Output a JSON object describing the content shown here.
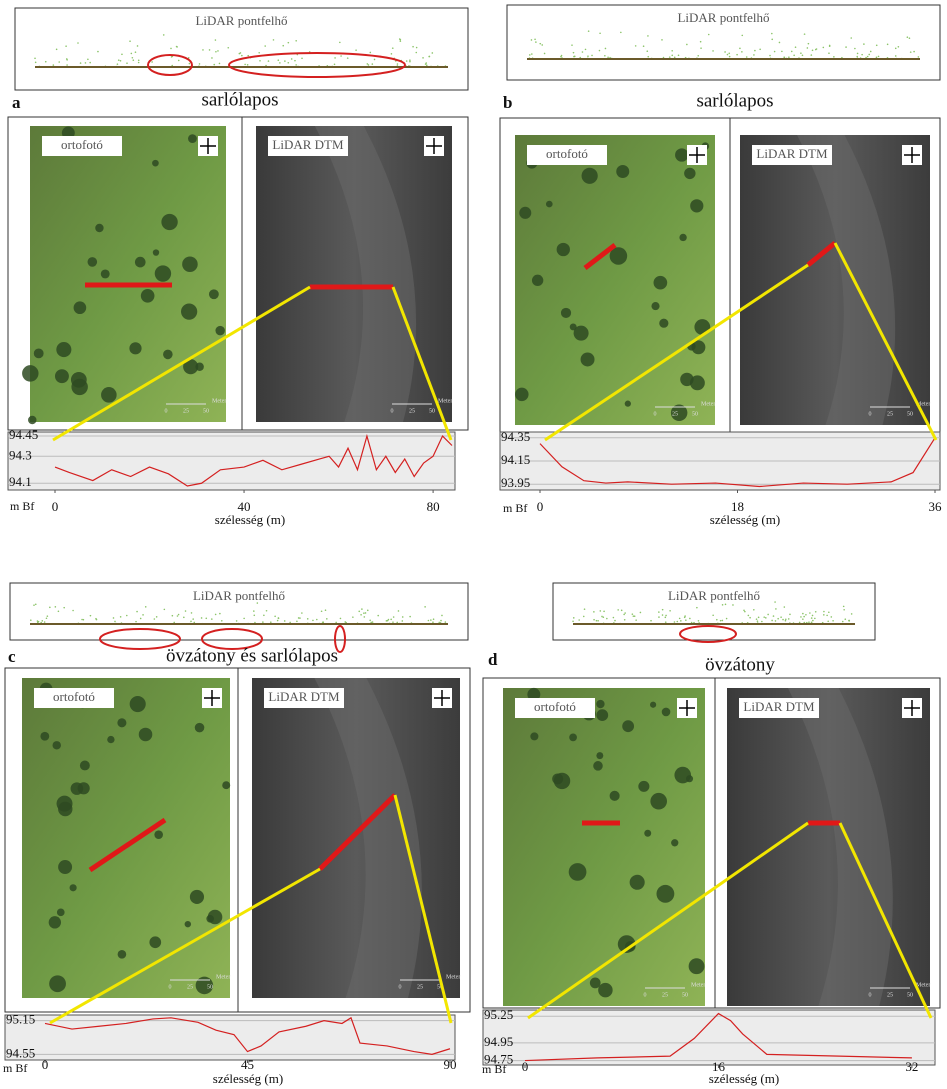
{
  "scale_bar": {
    "ticks": [
      0,
      25,
      50
    ],
    "unit": "Meter"
  },
  "panels": [
    {
      "letter": "a",
      "title": "sarlólapos",
      "pointcloud": "LiDAR pontfelhő",
      "ortho": "ortofotó",
      "dtm": "LiDAR DTM",
      "profile": {
        "unit": "m Bf",
        "xlabel": "szélesség (m)",
        "xlim": [
          0,
          84
        ],
        "ylim": [
          94.05,
          94.48
        ],
        "xticks": [
          0,
          40,
          80
        ],
        "yticks": [
          94.1,
          94.3,
          94.45
        ],
        "x": [
          0,
          3,
          8,
          12,
          16,
          20,
          24,
          28,
          31,
          35,
          40,
          44,
          48,
          52,
          56,
          58,
          60,
          62,
          64,
          66,
          68,
          70,
          72,
          74,
          76,
          78,
          80,
          82,
          84
        ],
        "values": [
          94.22,
          94.18,
          94.12,
          94.2,
          94.15,
          94.22,
          94.17,
          94.08,
          94.1,
          94.2,
          94.22,
          94.27,
          94.2,
          94.24,
          94.28,
          94.3,
          94.22,
          94.36,
          94.2,
          94.45,
          94.2,
          94.3,
          94.18,
          94.28,
          94.15,
          94.25,
          94.3,
          94.45,
          94.38
        ]
      }
    },
    {
      "letter": "b",
      "title": "sarlólapos",
      "pointcloud": "LiDAR pontfelhő",
      "ortho": "ortofotó",
      "dtm": "LiDAR DTM",
      "profile": {
        "unit": "m Bf",
        "xlabel": "szélesség (m)",
        "xlim": [
          0,
          36
        ],
        "ylim": [
          93.9,
          94.4
        ],
        "xticks": [
          0,
          18,
          36
        ],
        "yticks": [
          93.95,
          94.15,
          94.35
        ],
        "x": [
          0,
          2,
          4,
          6,
          8,
          12,
          16,
          20,
          24,
          28,
          32,
          34,
          36
        ],
        "values": [
          94.3,
          94.1,
          93.98,
          93.96,
          93.97,
          93.95,
          93.96,
          93.93,
          93.96,
          93.95,
          93.97,
          94.05,
          94.35
        ]
      }
    },
    {
      "letter": "c",
      "title": "övzátony és sarlólapos",
      "pointcloud": "LiDAR pontfelhő",
      "ortho": "ortofotó",
      "dtm": "LiDAR DTM",
      "profile": {
        "unit": "m Bf",
        "xlabel": "szélesség (m)",
        "xlim": [
          0,
          90
        ],
        "ylim": [
          94.45,
          95.25
        ],
        "xticks": [
          0,
          45,
          90
        ],
        "yticks": [
          94.55,
          95.15
        ],
        "x": [
          0,
          6,
          12,
          18,
          24,
          28,
          34,
          38,
          42,
          45,
          48,
          52,
          58,
          62,
          66,
          68,
          70,
          76,
          82,
          86,
          90
        ],
        "values": [
          95.1,
          95.0,
          95.05,
          95.1,
          95.18,
          95.2,
          95.12,
          94.98,
          94.9,
          94.6,
          94.7,
          94.95,
          95.05,
          95.15,
          95.1,
          95.2,
          94.75,
          94.7,
          94.6,
          94.55,
          94.65
        ]
      }
    },
    {
      "letter": "d",
      "title": "övzátony",
      "pointcloud": "LiDAR pontfelhő",
      "ortho": "ortofotó",
      "dtm": "LiDAR DTM",
      "profile": {
        "unit": "m Bf",
        "xlabel": "szélesség (m)",
        "xlim": [
          0,
          33
        ],
        "ylim": [
          94.7,
          95.32
        ],
        "xticks": [
          0,
          16,
          32
        ],
        "yticks": [
          94.75,
          94.95,
          95.25
        ],
        "x": [
          0,
          6,
          12,
          14,
          16,
          17,
          18,
          20,
          26,
          32
        ],
        "values": [
          94.75,
          94.78,
          94.8,
          95.0,
          95.28,
          95.2,
          95.05,
          94.82,
          94.8,
          94.78
        ]
      }
    }
  ]
}
